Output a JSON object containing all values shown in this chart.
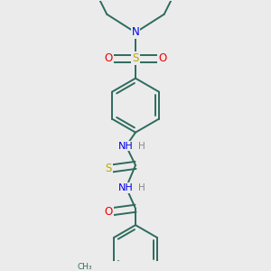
{
  "bg_color": "#ebebeb",
  "bond_color": "#2d6b5e",
  "N_color": "#0000ee",
  "S_color": "#bbaa00",
  "O_color": "#ee0000",
  "H_color": "#888888",
  "line_width": 1.4,
  "fig_size": [
    3.0,
    3.0
  ],
  "dpi": 100,
  "xlim": [
    -1.6,
    1.6
  ],
  "ylim": [
    -3.2,
    1.8
  ]
}
